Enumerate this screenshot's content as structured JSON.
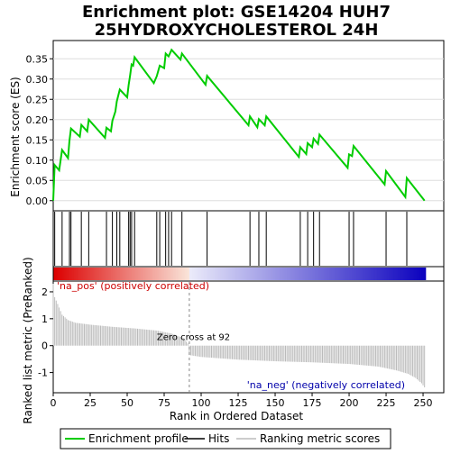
{
  "chart_data": {
    "type": "line",
    "title_line1": "Enrichment plot: GSE14204 HUH7",
    "title_line2": "25HYDROXYCHOLESTEROL 24H",
    "top_panel": {
      "ylabel": "Enrichment score (ES)",
      "ylim": [
        -0.025,
        0.395
      ],
      "yticks": [
        "0.00",
        "0.05",
        "0.10",
        "0.15",
        "0.20",
        "0.25",
        "0.30",
        "0.35"
      ],
      "ytick_values": [
        0,
        0.05,
        0.1,
        0.15,
        0.2,
        0.25,
        0.3,
        0.35
      ],
      "series_color": "#00cc00",
      "series": [
        [
          0,
          0.0
        ],
        [
          1,
          0.088
        ],
        [
          4,
          0.075
        ],
        [
          6,
          0.125
        ],
        [
          10,
          0.105
        ],
        [
          11,
          0.148
        ],
        [
          12,
          0.178
        ],
        [
          18,
          0.158
        ],
        [
          19,
          0.187
        ],
        [
          23,
          0.171
        ],
        [
          24,
          0.2
        ],
        [
          35,
          0.155
        ],
        [
          36,
          0.18
        ],
        [
          39,
          0.171
        ],
        [
          40,
          0.197
        ],
        [
          42,
          0.22
        ],
        [
          43,
          0.245
        ],
        [
          45,
          0.274
        ],
        [
          50,
          0.255
        ],
        [
          51,
          0.285
        ],
        [
          52,
          0.31
        ],
        [
          53,
          0.336
        ],
        [
          54,
          0.333
        ],
        [
          55,
          0.354
        ],
        [
          68,
          0.29
        ],
        [
          70,
          0.307
        ],
        [
          72,
          0.333
        ],
        [
          75,
          0.327
        ],
        [
          76,
          0.363
        ],
        [
          78,
          0.356
        ],
        [
          80,
          0.372
        ],
        [
          86,
          0.348
        ],
        [
          87,
          0.363
        ],
        [
          103,
          0.286
        ],
        [
          104,
          0.308
        ],
        [
          132,
          0.186
        ],
        [
          133,
          0.208
        ],
        [
          138,
          0.181
        ],
        [
          139,
          0.201
        ],
        [
          143,
          0.186
        ],
        [
          144,
          0.208
        ],
        [
          166,
          0.108
        ],
        [
          167,
          0.132
        ],
        [
          171,
          0.115
        ],
        [
          172,
          0.142
        ],
        [
          175,
          0.132
        ],
        [
          176,
          0.153
        ],
        [
          179,
          0.14
        ],
        [
          180,
          0.163
        ],
        [
          199,
          0.081
        ],
        [
          200,
          0.114
        ],
        [
          202,
          0.11
        ],
        [
          203,
          0.135
        ],
        [
          224,
          0.04
        ],
        [
          225,
          0.073
        ],
        [
          238,
          0.009
        ],
        [
          239,
          0.056
        ],
        [
          251,
          0.0
        ]
      ]
    },
    "hits": [
      0,
      1,
      6,
      11,
      12,
      19,
      24,
      36,
      40,
      43,
      45,
      51,
      52,
      53,
      55,
      70,
      72,
      76,
      78,
      80,
      87,
      104,
      133,
      139,
      144,
      167,
      172,
      176,
      180,
      200,
      203,
      225,
      239
    ],
    "bottom_panel": {
      "ylabel": "Ranked list metric (PreRanked)",
      "xlabel": "Rank in Ordered Dataset",
      "ylim": [
        -1.75,
        2.4
      ],
      "yticks": [
        "-1",
        "0",
        "1",
        "2"
      ],
      "ytick_values": [
        -1,
        0,
        1,
        2
      ],
      "xlim": [
        0,
        264
      ],
      "xticks": [
        "0",
        "25",
        "50",
        "75",
        "100",
        "125",
        "150",
        "175",
        "200",
        "225",
        "250"
      ],
      "xtick_values": [
        0,
        25,
        50,
        75,
        100,
        125,
        150,
        175,
        200,
        225,
        250
      ],
      "metric_profile": [
        [
          0,
          2.3
        ],
        [
          1,
          1.8
        ],
        [
          3,
          1.55
        ],
        [
          6,
          1.15
        ],
        [
          10,
          0.95
        ],
        [
          15,
          0.85
        ],
        [
          25,
          0.78
        ],
        [
          40,
          0.7
        ],
        [
          55,
          0.64
        ],
        [
          70,
          0.56
        ],
        [
          80,
          0.45
        ],
        [
          88,
          0.28
        ],
        [
          91,
          0.08
        ],
        [
          92,
          -0.35
        ],
        [
          100,
          -0.42
        ],
        [
          125,
          -0.52
        ],
        [
          150,
          -0.58
        ],
        [
          175,
          -0.62
        ],
        [
          200,
          -0.68
        ],
        [
          220,
          -0.78
        ],
        [
          232,
          -0.92
        ],
        [
          240,
          -1.05
        ],
        [
          245,
          -1.2
        ],
        [
          249,
          -1.4
        ],
        [
          251,
          -1.55
        ]
      ],
      "zero_cross_rank": 92,
      "zero_cross_label": "Zero cross at 92",
      "pos_label": "'na_pos' (positively correlated)",
      "neg_label": "'na_neg' (negatively correlated)",
      "pos_label_color": "#cc0000",
      "neg_label_color": "#0000aa"
    },
    "legend": {
      "position": "bottom",
      "entries": [
        "Enrichment profile",
        "Hits",
        "Ranking metric scores"
      ],
      "colors": [
        "#00cc00",
        "#000000",
        "#bbbbbb"
      ]
    }
  }
}
